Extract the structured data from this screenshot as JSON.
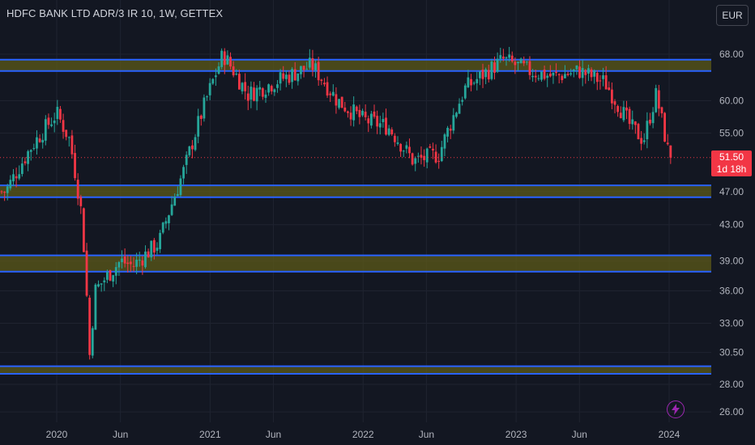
{
  "header": {
    "title": "HDFC BANK LTD ADR/3 IR 10, 1W, GETTEX",
    "currency_button": "EUR"
  },
  "last_price": {
    "value": "51.50",
    "countdown": "1d 18h"
  },
  "colors": {
    "background": "#131722",
    "up": "#26a69a",
    "down": "#f23645",
    "zone_fill": "#5c5a18",
    "zone_line": "#2962ff",
    "grid": "#1f2330"
  },
  "icons": {
    "bolt": "lightning-bolt-icon"
  },
  "chart_data": {
    "type": "candlestick",
    "title": "HDFC BANK LTD ADR/3 IR 10, 1W, GETTEX",
    "y_axis": {
      "scale": "log",
      "ticks": [
        "68.00",
        "60.00",
        "55.00",
        "47.00",
        "43.00",
        "39.00",
        "36.00",
        "33.00",
        "30.50",
        "28.00",
        "26.00"
      ]
    },
    "x_axis": {
      "ticks": [
        "2020",
        "Jun",
        "2021",
        "Jun",
        "2022",
        "Jun",
        "2023",
        "Jun",
        "2024"
      ]
    },
    "grid": true,
    "last_price": 51.5,
    "zones": [
      {
        "low": 65.0,
        "high": 67.0
      },
      {
        "low": 46.3,
        "high": 47.8
      },
      {
        "low": 37.9,
        "high": 39.6
      },
      {
        "low": 28.8,
        "high": 29.4
      }
    ],
    "approx_path": [
      {
        "date": "2019-09",
        "price": 47
      },
      {
        "date": "2019-11",
        "price": 53
      },
      {
        "date": "2020-01",
        "price": 58
      },
      {
        "date": "2020-02",
        "price": 54
      },
      {
        "date": "2020-03",
        "price": 44
      },
      {
        "date": "2020-03-20",
        "price": 30
      },
      {
        "date": "2020-04",
        "price": 36
      },
      {
        "date": "2020-06",
        "price": 39
      },
      {
        "date": "2020-07",
        "price": 38.5
      },
      {
        "date": "2020-09",
        "price": 41
      },
      {
        "date": "2020-11",
        "price": 50
      },
      {
        "date": "2021-01",
        "price": 62
      },
      {
        "date": "2021-02",
        "price": 68
      },
      {
        "date": "2021-04",
        "price": 61
      },
      {
        "date": "2021-06",
        "price": 63
      },
      {
        "date": "2021-09",
        "price": 66
      },
      {
        "date": "2021-11",
        "price": 60
      },
      {
        "date": "2022-01",
        "price": 57
      },
      {
        "date": "2022-03",
        "price": 56
      },
      {
        "date": "2022-05",
        "price": 51
      },
      {
        "date": "2022-07",
        "price": 52
      },
      {
        "date": "2022-09",
        "price": 62
      },
      {
        "date": "2022-12",
        "price": 67
      },
      {
        "date": "2023-02",
        "price": 65
      },
      {
        "date": "2023-04",
        "price": 64
      },
      {
        "date": "2023-06",
        "price": 65
      },
      {
        "date": "2023-08",
        "price": 63
      },
      {
        "date": "2023-10",
        "price": 56
      },
      {
        "date": "2023-11",
        "price": 54
      },
      {
        "date": "2023-12",
        "price": 61
      },
      {
        "date": "2024-01",
        "price": 51.5
      }
    ]
  }
}
